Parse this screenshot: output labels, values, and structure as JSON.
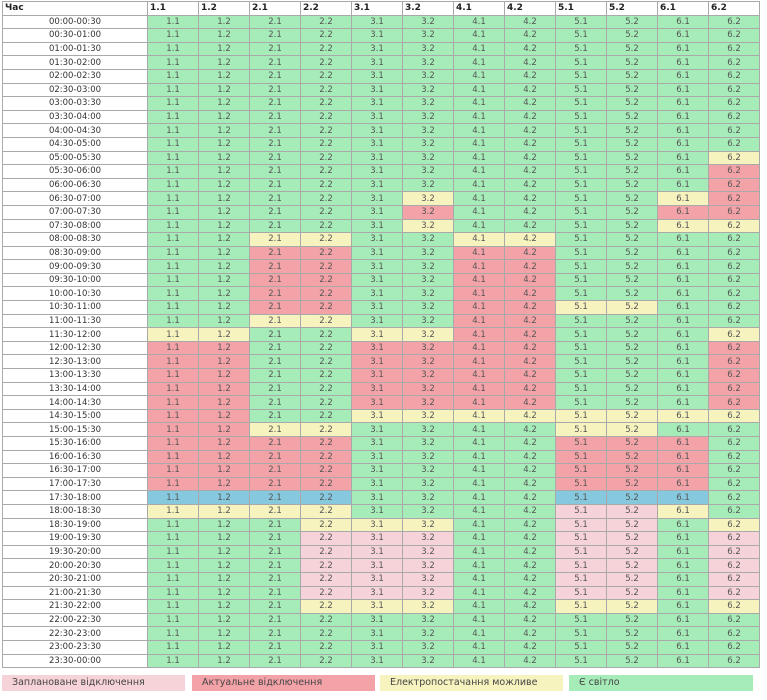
{
  "header": {
    "time_label": "Час",
    "queues": [
      "1.1",
      "1.2",
      "2.1",
      "2.2",
      "3.1",
      "3.2",
      "4.1",
      "4.2",
      "5.1",
      "5.2",
      "6.1",
      "6.2"
    ]
  },
  "status_colors": {
    "g": "#a6ecb8",
    "y": "#f7f3bf",
    "r": "#f3a3a8",
    "p": "#f6d3d8",
    "b": "#86c8dd"
  },
  "rows": [
    {
      "time": "00:00-00:30",
      "s": "gggggggggggg"
    },
    {
      "time": "00:30-01:00",
      "s": "gggggggggggg"
    },
    {
      "time": "01:00-01:30",
      "s": "gggggggggggg"
    },
    {
      "time": "01:30-02:00",
      "s": "gggggggggggg"
    },
    {
      "time": "02:00-02:30",
      "s": "gggggggggggg"
    },
    {
      "time": "02:30-03:00",
      "s": "gggggggggggg"
    },
    {
      "time": "03:00-03:30",
      "s": "gggggggggggg"
    },
    {
      "time": "03:30-04:00",
      "s": "gggggggggggg"
    },
    {
      "time": "04:00-04:30",
      "s": "gggggggggggg"
    },
    {
      "time": "04:30-05:00",
      "s": "gggggggggggg"
    },
    {
      "time": "05:00-05:30",
      "s": "gggggggggggy"
    },
    {
      "time": "05:30-06:00",
      "s": "gggggggggggr"
    },
    {
      "time": "06:00-06:30",
      "s": "gggggggggggr"
    },
    {
      "time": "06:30-07:00",
      "s": "gggggyggggyr"
    },
    {
      "time": "07:00-07:30",
      "s": "gggggrggggrr"
    },
    {
      "time": "07:30-08:00",
      "s": "gggggyggggyy"
    },
    {
      "time": "08:00-08:30",
      "s": "ggyyggyygggg"
    },
    {
      "time": "08:30-09:00",
      "s": "ggrrggrrgggg"
    },
    {
      "time": "09:00-09:30",
      "s": "ggrrggrrgggg"
    },
    {
      "time": "09:30-10:00",
      "s": "ggrrggrrgggg"
    },
    {
      "time": "10:00-10:30",
      "s": "ggrrggrrgggg"
    },
    {
      "time": "10:30-11:00",
      "s": "ggrrggrryygg"
    },
    {
      "time": "11:00-11:30",
      "s": "ggyyggrrgggg"
    },
    {
      "time": "11:30-12:00",
      "s": "yyggyyrrgggy"
    },
    {
      "time": "12:00-12:30",
      "s": "rrggrrrrgggr"
    },
    {
      "time": "12:30-13:00",
      "s": "rrggrrrrgggr"
    },
    {
      "time": "13:00-13:30",
      "s": "rrggrrrrgggr"
    },
    {
      "time": "13:30-14:00",
      "s": "rrggrrrrgggr"
    },
    {
      "time": "14:00-14:30",
      "s": "rrggrrrrgggr"
    },
    {
      "time": "14:30-15:00",
      "s": "rrggyyyyyyyy"
    },
    {
      "time": "15:00-15:30",
      "s": "rryyggggyygg"
    },
    {
      "time": "15:30-16:00",
      "s": "rrrrggggrrrg"
    },
    {
      "time": "16:00-16:30",
      "s": "rrrrggggrrrg"
    },
    {
      "time": "16:30-17:00",
      "s": "rrrrggggrrrg"
    },
    {
      "time": "17:00-17:30",
      "s": "rrrrggggrrrg"
    },
    {
      "time": "17:30-18:00",
      "s": "bbbbggggbbbg"
    },
    {
      "time": "18:00-18:30",
      "s": "yyyyggggppyg"
    },
    {
      "time": "18:30-19:00",
      "s": "gggyyyggppgy"
    },
    {
      "time": "19:00-19:30",
      "s": "gggpppggppgp"
    },
    {
      "time": "19:30-20:00",
      "s": "gggpppggppgp"
    },
    {
      "time": "20:00-20:30",
      "s": "gggpppggppgp"
    },
    {
      "time": "20:30-21:00",
      "s": "gggpppggppgp"
    },
    {
      "time": "21:00-21:30",
      "s": "gggpppggppgp"
    },
    {
      "time": "21:30-22:00",
      "s": "gggyyyggyygy"
    },
    {
      "time": "22:00-22:30",
      "s": "gggggggggggg"
    },
    {
      "time": "22:30-23:00",
      "s": "gggggggggggg"
    },
    {
      "time": "23:00-23:30",
      "s": "gggggggggggg"
    },
    {
      "time": "23:30-00:00",
      "s": "gggggggggggg"
    }
  ],
  "legend": [
    {
      "label": "Заплановане відключення",
      "color": "#f6d3d8"
    },
    {
      "label": "Актуальне відключення",
      "color": "#f3a3a8"
    },
    {
      "label": "Електропостачання можливе",
      "color": "#f7f3bf"
    },
    {
      "label": "Є світло",
      "color": "#a6ecb8"
    }
  ]
}
